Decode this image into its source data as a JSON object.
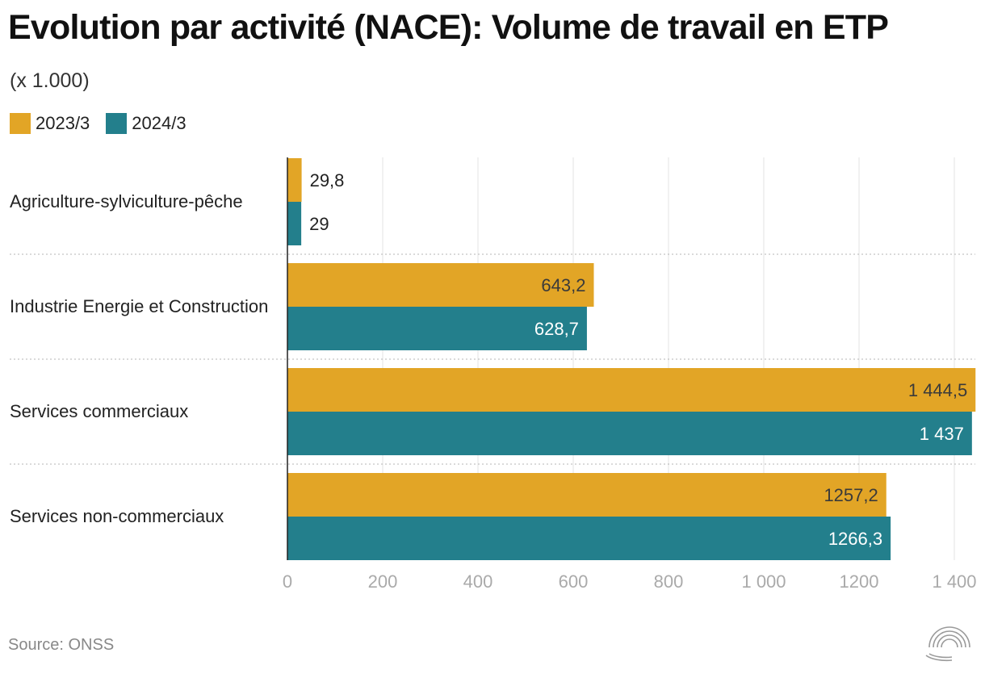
{
  "title": "Evolution par activité (NACE): Volume de travail en ETP",
  "subtitle": "(x 1.000)",
  "legend": [
    {
      "label": "2023/3",
      "color": "#E2A526"
    },
    {
      "label": "2024/3",
      "color": "#237F8C"
    }
  ],
  "source": "Source: ONSS",
  "logo_icon": "concentric-arcs-logo-icon",
  "chart_data": {
    "type": "bar",
    "orientation": "horizontal",
    "title": "Evolution par activité (NACE): Volume de travail en ETP",
    "subtitle": "(x 1.000)",
    "categories": [
      "Agriculture-sylviculture-pêche",
      "Industrie Energie et Construction",
      "Services commerciaux",
      "Services non-commerciaux"
    ],
    "series": [
      {
        "name": "2023/3",
        "color": "#E2A526",
        "values": [
          29.8,
          643.2,
          1444.5,
          1257.2
        ],
        "labels": [
          "29,8",
          "643,2",
          "1 444,5",
          "1257,2"
        ]
      },
      {
        "name": "2024/3",
        "color": "#237F8C",
        "values": [
          29,
          628.7,
          1437,
          1266.3
        ],
        "labels": [
          "29",
          "628,7",
          "1 437",
          "1266,3"
        ]
      }
    ],
    "xlim": [
      0,
      1400
    ],
    "xticks": [
      0,
      200,
      400,
      600,
      800,
      1000,
      1200,
      1400
    ],
    "xtick_labels": [
      "0",
      "200",
      "400",
      "600",
      "800",
      "1 000",
      "1200",
      "1 400"
    ],
    "grid": true,
    "legend_position": "top-left"
  }
}
